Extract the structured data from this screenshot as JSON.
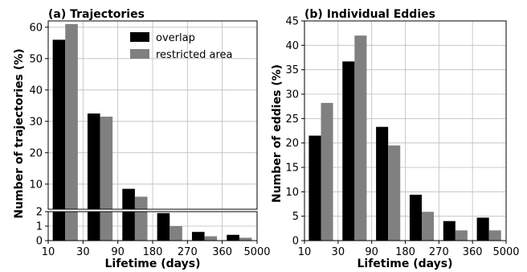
{
  "figure": {
    "legend": {
      "entries": [
        {
          "label": "overlap",
          "color": "#000000"
        },
        {
          "label": "restricted area",
          "color": "#808080"
        }
      ],
      "placement": "top-right of panel a"
    }
  },
  "chart_data": [
    {
      "type": "bar",
      "title": "(a) Trajectories",
      "xlabel": "Lifetime (days)",
      "ylabel": "Number of trajectories (%)",
      "categories": [
        "10-30",
        "30-90",
        "90-180",
        "180-270",
        "270-360",
        "360-5000"
      ],
      "x_ticks": [
        "10",
        "30",
        "90",
        "180",
        "270",
        "360",
        "5000"
      ],
      "broken_y_axis": true,
      "upper_ylim": [
        2,
        62
      ],
      "upper_yticks": [
        "10",
        "20",
        "30",
        "40",
        "50",
        "60"
      ],
      "lower_ylim": [
        0,
        2
      ],
      "lower_yticks": [
        "0",
        "1",
        "2"
      ],
      "series": [
        {
          "name": "overlap",
          "color": "#000000",
          "values": [
            56,
            32.5,
            8.5,
            1.9,
            0.6,
            0.4
          ]
        },
        {
          "name": "restricted area",
          "color": "#808080",
          "values": [
            61,
            31.5,
            6,
            1.0,
            0.3,
            0.2
          ]
        }
      ],
      "grid": true,
      "legend": "top-right"
    },
    {
      "type": "bar",
      "title": "(b) Individual Eddies",
      "xlabel": "Lifetime (days)",
      "ylabel": "Number of eddies (%)",
      "categories": [
        "10-30",
        "30-90",
        "90-180",
        "180-270",
        "270-360",
        "360-5000"
      ],
      "x_ticks": [
        "10",
        "30",
        "90",
        "180",
        "270",
        "360",
        "5000"
      ],
      "ylim": [
        0,
        45
      ],
      "yticks": [
        "0",
        "5",
        "10",
        "15",
        "20",
        "25",
        "30",
        "35",
        "40",
        "45"
      ],
      "series": [
        {
          "name": "overlap",
          "color": "#000000",
          "values": [
            21.5,
            36.7,
            23.3,
            9.4,
            4.0,
            4.7
          ]
        },
        {
          "name": "restricted area",
          "color": "#808080",
          "values": [
            28.2,
            42,
            19.5,
            5.9,
            2.1,
            2.1
          ]
        }
      ],
      "grid": true
    }
  ]
}
